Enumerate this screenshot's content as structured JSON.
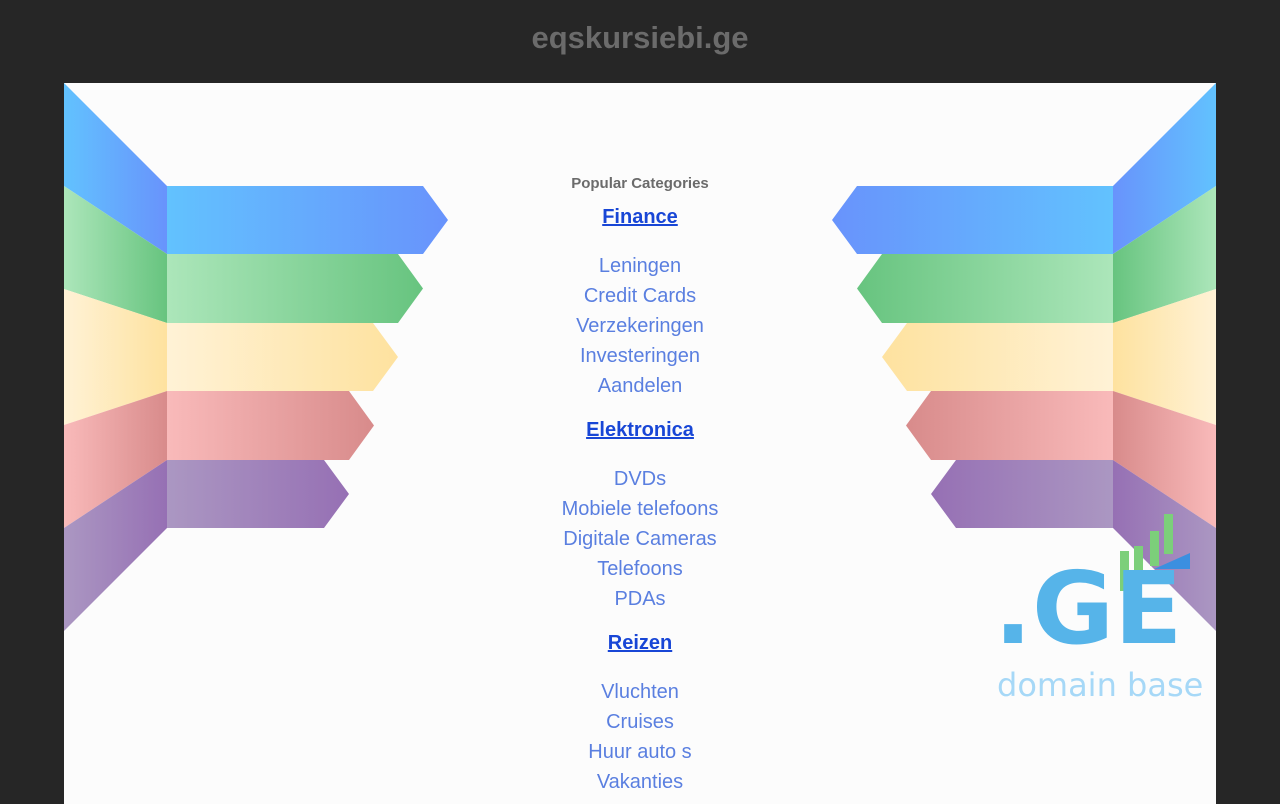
{
  "header": {
    "title": "eqskursiebi.ge"
  },
  "categories": {
    "title": "Popular Categories",
    "groups": [
      {
        "label": "Finance",
        "items": [
          "Leningen",
          "Credit Cards",
          "Verzekeringen",
          "Investeringen",
          "Aandelen"
        ]
      },
      {
        "label": "Elektronica",
        "items": [
          "DVDs",
          "Mobiele telefoons",
          "Digitale Cameras",
          "Telefoons",
          "PDAs"
        ]
      },
      {
        "label": "Reizen",
        "items": [
          "Vluchten",
          "Cruises",
          "Huur auto s",
          "Vakanties"
        ]
      }
    ]
  },
  "logo": {
    "text": ".GE",
    "tagline": "domain base"
  },
  "colors": {
    "background": "#262626",
    "page": "#fcfcfc",
    "heading_link": "#1846d6",
    "item_link": "#5a7fe0",
    "logo_blue": "#56b4e9",
    "logo_green": "#7ccf7a"
  }
}
